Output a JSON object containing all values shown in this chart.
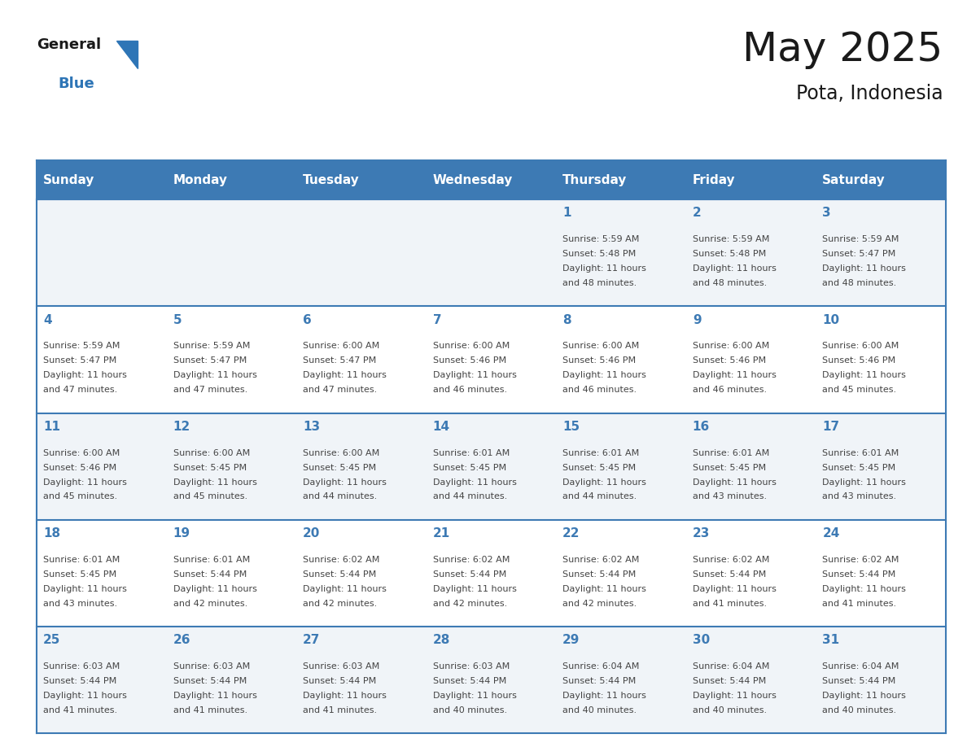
{
  "title": "May 2025",
  "subtitle": "Pota, Indonesia",
  "days_of_week": [
    "Sunday",
    "Monday",
    "Tuesday",
    "Wednesday",
    "Thursday",
    "Friday",
    "Saturday"
  ],
  "header_bg": "#3d7ab4",
  "header_text": "#ffffff",
  "cell_bg_even": "#f0f4f8",
  "cell_bg_odd": "#ffffff",
  "cell_border": "#3d7ab4",
  "day_num_color": "#3d7ab4",
  "info_text_color": "#444444",
  "title_color": "#1a1a1a",
  "logo_general_color": "#1a1a1a",
  "logo_blue_color": "#2e75b6",
  "calendar_data": [
    [
      null,
      null,
      null,
      null,
      {
        "day": 1,
        "sunrise": "5:59 AM",
        "sunset": "5:48 PM",
        "daylight_hours": 11,
        "daylight_minutes": 48
      },
      {
        "day": 2,
        "sunrise": "5:59 AM",
        "sunset": "5:48 PM",
        "daylight_hours": 11,
        "daylight_minutes": 48
      },
      {
        "day": 3,
        "sunrise": "5:59 AM",
        "sunset": "5:47 PM",
        "daylight_hours": 11,
        "daylight_minutes": 48
      }
    ],
    [
      {
        "day": 4,
        "sunrise": "5:59 AM",
        "sunset": "5:47 PM",
        "daylight_hours": 11,
        "daylight_minutes": 47
      },
      {
        "day": 5,
        "sunrise": "5:59 AM",
        "sunset": "5:47 PM",
        "daylight_hours": 11,
        "daylight_minutes": 47
      },
      {
        "day": 6,
        "sunrise": "6:00 AM",
        "sunset": "5:47 PM",
        "daylight_hours": 11,
        "daylight_minutes": 47
      },
      {
        "day": 7,
        "sunrise": "6:00 AM",
        "sunset": "5:46 PM",
        "daylight_hours": 11,
        "daylight_minutes": 46
      },
      {
        "day": 8,
        "sunrise": "6:00 AM",
        "sunset": "5:46 PM",
        "daylight_hours": 11,
        "daylight_minutes": 46
      },
      {
        "day": 9,
        "sunrise": "6:00 AM",
        "sunset": "5:46 PM",
        "daylight_hours": 11,
        "daylight_minutes": 46
      },
      {
        "day": 10,
        "sunrise": "6:00 AM",
        "sunset": "5:46 PM",
        "daylight_hours": 11,
        "daylight_minutes": 45
      }
    ],
    [
      {
        "day": 11,
        "sunrise": "6:00 AM",
        "sunset": "5:46 PM",
        "daylight_hours": 11,
        "daylight_minutes": 45
      },
      {
        "day": 12,
        "sunrise": "6:00 AM",
        "sunset": "5:45 PM",
        "daylight_hours": 11,
        "daylight_minutes": 45
      },
      {
        "day": 13,
        "sunrise": "6:00 AM",
        "sunset": "5:45 PM",
        "daylight_hours": 11,
        "daylight_minutes": 44
      },
      {
        "day": 14,
        "sunrise": "6:01 AM",
        "sunset": "5:45 PM",
        "daylight_hours": 11,
        "daylight_minutes": 44
      },
      {
        "day": 15,
        "sunrise": "6:01 AM",
        "sunset": "5:45 PM",
        "daylight_hours": 11,
        "daylight_minutes": 44
      },
      {
        "day": 16,
        "sunrise": "6:01 AM",
        "sunset": "5:45 PM",
        "daylight_hours": 11,
        "daylight_minutes": 43
      },
      {
        "day": 17,
        "sunrise": "6:01 AM",
        "sunset": "5:45 PM",
        "daylight_hours": 11,
        "daylight_minutes": 43
      }
    ],
    [
      {
        "day": 18,
        "sunrise": "6:01 AM",
        "sunset": "5:45 PM",
        "daylight_hours": 11,
        "daylight_minutes": 43
      },
      {
        "day": 19,
        "sunrise": "6:01 AM",
        "sunset": "5:44 PM",
        "daylight_hours": 11,
        "daylight_minutes": 42
      },
      {
        "day": 20,
        "sunrise": "6:02 AM",
        "sunset": "5:44 PM",
        "daylight_hours": 11,
        "daylight_minutes": 42
      },
      {
        "day": 21,
        "sunrise": "6:02 AM",
        "sunset": "5:44 PM",
        "daylight_hours": 11,
        "daylight_minutes": 42
      },
      {
        "day": 22,
        "sunrise": "6:02 AM",
        "sunset": "5:44 PM",
        "daylight_hours": 11,
        "daylight_minutes": 42
      },
      {
        "day": 23,
        "sunrise": "6:02 AM",
        "sunset": "5:44 PM",
        "daylight_hours": 11,
        "daylight_minutes": 41
      },
      {
        "day": 24,
        "sunrise": "6:02 AM",
        "sunset": "5:44 PM",
        "daylight_hours": 11,
        "daylight_minutes": 41
      }
    ],
    [
      {
        "day": 25,
        "sunrise": "6:03 AM",
        "sunset": "5:44 PM",
        "daylight_hours": 11,
        "daylight_minutes": 41
      },
      {
        "day": 26,
        "sunrise": "6:03 AM",
        "sunset": "5:44 PM",
        "daylight_hours": 11,
        "daylight_minutes": 41
      },
      {
        "day": 27,
        "sunrise": "6:03 AM",
        "sunset": "5:44 PM",
        "daylight_hours": 11,
        "daylight_minutes": 41
      },
      {
        "day": 28,
        "sunrise": "6:03 AM",
        "sunset": "5:44 PM",
        "daylight_hours": 11,
        "daylight_minutes": 40
      },
      {
        "day": 29,
        "sunrise": "6:04 AM",
        "sunset": "5:44 PM",
        "daylight_hours": 11,
        "daylight_minutes": 40
      },
      {
        "day": 30,
        "sunrise": "6:04 AM",
        "sunset": "5:44 PM",
        "daylight_hours": 11,
        "daylight_minutes": 40
      },
      {
        "day": 31,
        "sunrise": "6:04 AM",
        "sunset": "5:44 PM",
        "daylight_hours": 11,
        "daylight_minutes": 40
      }
    ]
  ]
}
